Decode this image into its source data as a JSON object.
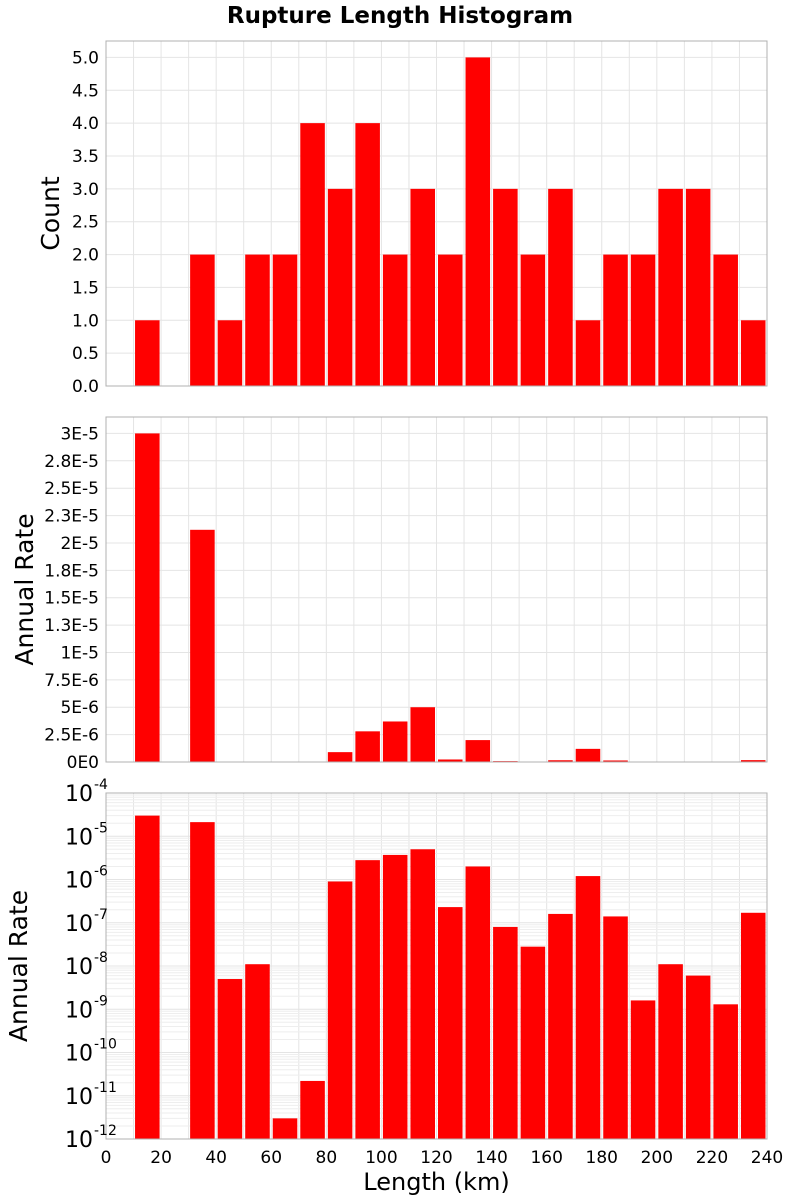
{
  "title": "Rupture Length Histogram",
  "colors": {
    "bar": "#ff0000",
    "grid": "#e4e4e4",
    "frame": "#b0b0b0"
  },
  "chart_data": [
    {
      "type": "bar",
      "name": "count-panel",
      "title": "Rupture Length Histogram",
      "ylabel": "Count",
      "xlabel": "",
      "bin_centers": [
        15,
        25,
        35,
        45,
        55,
        65,
        75,
        85,
        95,
        105,
        115,
        125,
        135,
        145,
        155,
        165,
        175,
        185,
        195,
        205,
        215,
        225,
        235
      ],
      "values": [
        1,
        0,
        2,
        1,
        2,
        2,
        4,
        3,
        4,
        2,
        3,
        2,
        5,
        3,
        2,
        3,
        1,
        2,
        2,
        3,
        3,
        2,
        1
      ],
      "xlim": [
        0,
        240
      ],
      "ylim": [
        0,
        5.25
      ],
      "yticks": [
        0,
        0.5,
        1,
        1.5,
        2,
        2.5,
        3,
        3.5,
        4,
        4.5,
        5
      ],
      "ytick_labels": [
        "0.0",
        "0.5",
        "1.0",
        "1.5",
        "2.0",
        "2.5",
        "3.0",
        "3.5",
        "4.0",
        "4.5",
        "5.0"
      ],
      "grid": true
    },
    {
      "type": "bar",
      "name": "rate-linear-panel",
      "ylabel": "Annual Rate",
      "xlabel": "",
      "bin_centers": [
        15,
        25,
        35,
        45,
        55,
        65,
        75,
        85,
        95,
        105,
        115,
        125,
        135,
        145,
        155,
        165,
        175,
        185,
        195,
        205,
        215,
        225,
        235
      ],
      "values": [
        3e-05,
        0,
        2.12e-05,
        5e-09,
        1.1e-08,
        3e-12,
        2.2e-11,
        9e-07,
        2.8e-06,
        3.7e-06,
        5e-06,
        2.3e-07,
        2e-06,
        8e-08,
        2.8e-08,
        1.6e-07,
        1.2e-06,
        1.4e-07,
        1.6e-09,
        1.1e-08,
        6e-09,
        1.3e-09,
        1.7e-07
      ],
      "xlim": [
        0,
        240
      ],
      "ylim": [
        0,
        3.15e-05
      ],
      "yticks": [
        0,
        2.5e-06,
        5e-06,
        7.5e-06,
        1e-05,
        1.25e-05,
        1.5e-05,
        1.75e-05,
        2e-05,
        2.25e-05,
        2.5e-05,
        2.75e-05,
        3e-05
      ],
      "ytick_labels": [
        "0E0",
        "2.5E-6",
        "5E-6",
        "7.5E-6",
        "1E-5",
        "1.3E-5",
        "1.5E-5",
        "1.8E-5",
        "2E-5",
        "2.3E-5",
        "2.5E-5",
        "2.8E-5",
        "3E-5"
      ],
      "grid": true
    },
    {
      "type": "bar",
      "name": "rate-log-panel",
      "yscale": "log",
      "ylabel": "Annual Rate",
      "xlabel": "Length (km)",
      "bin_centers": [
        15,
        25,
        35,
        45,
        55,
        65,
        75,
        85,
        95,
        105,
        115,
        125,
        135,
        145,
        155,
        165,
        175,
        185,
        195,
        205,
        215,
        225,
        235
      ],
      "values": [
        3e-05,
        0,
        2.12e-05,
        5e-09,
        1.1e-08,
        3e-12,
        2.2e-11,
        9e-07,
        2.8e-06,
        3.7e-06,
        5e-06,
        2.3e-07,
        2e-06,
        8e-08,
        2.8e-08,
        1.6e-07,
        1.2e-06,
        1.4e-07,
        1.6e-09,
        1.1e-08,
        6e-09,
        1.3e-09,
        1.7e-07
      ],
      "xlim": [
        0,
        240
      ],
      "ylim": [
        1e-12,
        0.0001
      ],
      "ytick_base": "10",
      "ytick_exponents": [
        "-4",
        "-5",
        "-6",
        "-7",
        "-8",
        "-9",
        "-10",
        "-11",
        "-12"
      ],
      "xticks": [
        0,
        20,
        40,
        60,
        80,
        100,
        120,
        140,
        160,
        180,
        200,
        220,
        240
      ],
      "xtick_labels": [
        "0",
        "20",
        "40",
        "60",
        "80",
        "100",
        "120",
        "140",
        "160",
        "180",
        "200",
        "220",
        "240"
      ],
      "grid": true
    }
  ]
}
